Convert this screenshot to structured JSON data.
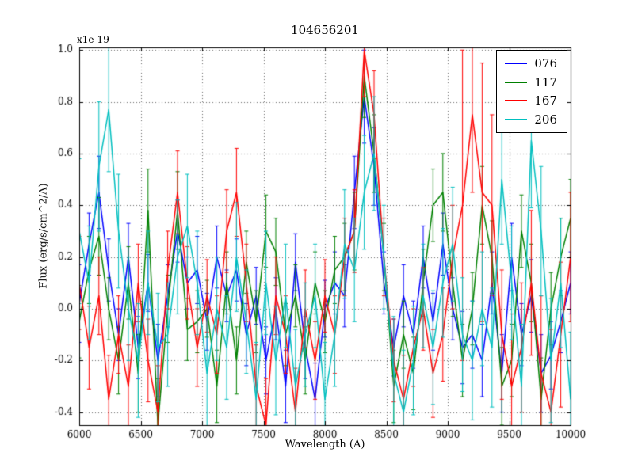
{
  "chart_data": {
    "type": "line",
    "title": "104656201",
    "xlabel": "Wavelength (A)",
    "ylabel": "Flux (erg/s/cm^2/A)",
    "y_offset_label": "x1e-19",
    "xlim": [
      6000,
      10000
    ],
    "ylim": [
      -0.45,
      1.01
    ],
    "grid": true,
    "legend_position": "upper right",
    "xticks": [
      6000,
      6500,
      7000,
      7500,
      8000,
      8500,
      9000,
      9500,
      10000
    ],
    "xticklabels": [
      "6000",
      "6500",
      "7000",
      "7500",
      "8000",
      "8500",
      "9000",
      "9500",
      "10000"
    ],
    "yticks": [
      -0.4,
      -0.2,
      0.0,
      0.2,
      0.4,
      0.6,
      0.8,
      1.0
    ],
    "yticklabels": [
      "-0.4",
      "-0.2",
      "0.0",
      "0.2",
      "0.4",
      "0.6",
      "0.8",
      "1.0"
    ],
    "x": [
      6000,
      6080,
      6160,
      6240,
      6320,
      6400,
      6480,
      6560,
      6640,
      6720,
      6800,
      6880,
      6960,
      7040,
      7120,
      7200,
      7280,
      7360,
      7440,
      7520,
      7600,
      7680,
      7760,
      7840,
      7920,
      8000,
      8080,
      8160,
      8240,
      8320,
      8400,
      8480,
      8560,
      8640,
      8720,
      8800,
      8880,
      8960,
      9040,
      9120,
      9200,
      9280,
      9360,
      9440,
      9520,
      9600,
      9680,
      9760,
      9840,
      9920,
      10000
    ],
    "series": [
      {
        "name": "076",
        "color": "#0000ff",
        "values": [
          0.02,
          0.25,
          0.45,
          0.15,
          -0.1,
          0.2,
          -0.15,
          0.1,
          -0.2,
          0.05,
          0.3,
          0.1,
          0.15,
          -0.05,
          0.2,
          0.05,
          0.15,
          -0.1,
          0.05,
          -0.2,
          0.0,
          -0.3,
          0.18,
          -0.15,
          -0.35,
          0.0,
          0.1,
          0.05,
          0.45,
          0.82,
          0.55,
          0.1,
          -0.15,
          0.05,
          -0.1,
          0.2,
          -0.05,
          0.25,
          0.0,
          -0.15,
          -0.1,
          -0.2,
          0.1,
          -0.25,
          0.2,
          -0.1,
          0.05,
          -0.25,
          -0.18,
          -0.05,
          0.1
        ],
        "err": [
          0.15,
          0.12,
          0.14,
          0.12,
          0.1,
          0.13,
          0.12,
          0.11,
          0.14,
          0.12,
          0.12,
          0.1,
          0.13,
          0.11,
          0.12,
          0.1,
          0.12,
          0.12,
          0.11,
          0.13,
          0.12,
          0.14,
          0.11,
          0.12,
          0.14,
          0.11,
          0.12,
          0.12,
          0.14,
          0.18,
          0.15,
          0.12,
          0.11,
          0.12,
          0.13,
          0.12,
          0.11,
          0.12,
          0.12,
          0.14,
          0.13,
          0.14,
          0.12,
          0.15,
          0.13,
          0.12,
          0.14,
          0.15,
          0.13,
          0.12,
          0.12
        ]
      },
      {
        "name": "117",
        "color": "#008000",
        "values": [
          -0.05,
          0.15,
          0.28,
          0.0,
          -0.2,
          0.1,
          -0.25,
          0.38,
          -0.45,
          0.0,
          0.38,
          -0.08,
          -0.05,
          0.0,
          -0.3,
          0.1,
          -0.2,
          0.18,
          -0.05,
          0.3,
          0.22,
          -0.1,
          0.05,
          -0.2,
          0.1,
          -0.05,
          0.15,
          0.2,
          0.3,
          0.9,
          0.6,
          0.2,
          -0.3,
          -0.1,
          -0.25,
          0.1,
          0.4,
          0.45,
          0.1,
          -0.2,
          0.0,
          0.4,
          0.2,
          -0.3,
          -0.2,
          0.3,
          0.1,
          -0.35,
          0.0,
          0.2,
          0.35
        ],
        "err": [
          0.14,
          0.13,
          0.15,
          0.12,
          0.13,
          0.14,
          0.15,
          0.16,
          0.18,
          0.13,
          0.15,
          0.12,
          0.12,
          0.11,
          0.14,
          0.12,
          0.13,
          0.12,
          0.12,
          0.14,
          0.13,
          0.12,
          0.12,
          0.13,
          0.12,
          0.12,
          0.13,
          0.13,
          0.15,
          0.16,
          0.15,
          0.13,
          0.14,
          0.13,
          0.14,
          0.13,
          0.14,
          0.15,
          0.13,
          0.14,
          0.14,
          0.15,
          0.14,
          0.15,
          0.14,
          0.14,
          0.15,
          0.16,
          0.14,
          0.15,
          0.15
        ]
      },
      {
        "name": "167",
        "color": "#ff0000",
        "values": [
          0.1,
          -0.15,
          0.05,
          -0.35,
          -0.1,
          -0.3,
          0.1,
          -0.2,
          -0.4,
          0.15,
          0.45,
          0.1,
          -0.15,
          0.05,
          -0.1,
          0.3,
          0.45,
          0.1,
          -0.3,
          -0.45,
          0.05,
          -0.1,
          -0.4,
          0.0,
          -0.2,
          0.05,
          -0.1,
          0.2,
          0.3,
          1.0,
          0.75,
          0.2,
          -0.2,
          -0.35,
          -0.15,
          0.0,
          -0.25,
          -0.1,
          0.2,
          0.4,
          0.75,
          0.45,
          0.4,
          -0.1,
          -0.3,
          -0.15,
          0.1,
          -0.25,
          -0.4,
          -0.1,
          0.2
        ],
        "err": [
          0.18,
          0.16,
          0.15,
          0.17,
          0.15,
          0.16,
          0.15,
          0.16,
          0.18,
          0.15,
          0.16,
          0.14,
          0.15,
          0.14,
          0.15,
          0.16,
          0.17,
          0.15,
          0.16,
          0.18,
          0.15,
          0.15,
          0.17,
          0.15,
          0.15,
          0.14,
          0.15,
          0.15,
          0.16,
          0.18,
          0.17,
          0.15,
          0.16,
          0.17,
          0.15,
          0.16,
          0.17,
          0.18,
          0.2,
          0.6,
          0.3,
          0.5,
          0.35,
          0.25,
          0.28,
          0.25,
          0.28,
          0.3,
          0.32,
          0.28,
          0.25
        ]
      },
      {
        "name": "206",
        "color": "#00bfbf",
        "values": [
          0.3,
          0.1,
          0.55,
          0.77,
          0.3,
          0.0,
          -0.2,
          0.1,
          -0.15,
          -0.1,
          0.2,
          0.32,
          0.1,
          -0.25,
          0.0,
          -0.15,
          0.2,
          -0.05,
          -0.35,
          0.1,
          -0.2,
          0.05,
          -0.3,
          -0.1,
          0.05,
          -0.35,
          -0.1,
          0.25,
          0.15,
          0.45,
          0.6,
          0.2,
          -0.25,
          -0.4,
          -0.2,
          0.05,
          -0.15,
          0.1,
          0.25,
          -0.1,
          -0.2,
          0.0,
          -0.15,
          0.5,
          0.1,
          -0.3,
          0.65,
          0.3,
          -0.2,
          0.1,
          -0.35
        ],
        "err": [
          0.28,
          0.22,
          0.25,
          0.24,
          0.22,
          0.2,
          0.22,
          0.2,
          0.21,
          0.2,
          0.22,
          0.2,
          0.2,
          0.22,
          0.2,
          0.2,
          0.21,
          0.2,
          0.22,
          0.2,
          0.21,
          0.2,
          0.22,
          0.2,
          0.2,
          0.22,
          0.2,
          0.21,
          0.2,
          0.22,
          0.22,
          0.2,
          0.22,
          0.24,
          0.21,
          0.2,
          0.22,
          0.21,
          0.22,
          0.22,
          0.23,
          0.22,
          0.23,
          0.25,
          0.22,
          0.24,
          0.26,
          0.25,
          0.24,
          0.25,
          0.26
        ]
      }
    ]
  }
}
